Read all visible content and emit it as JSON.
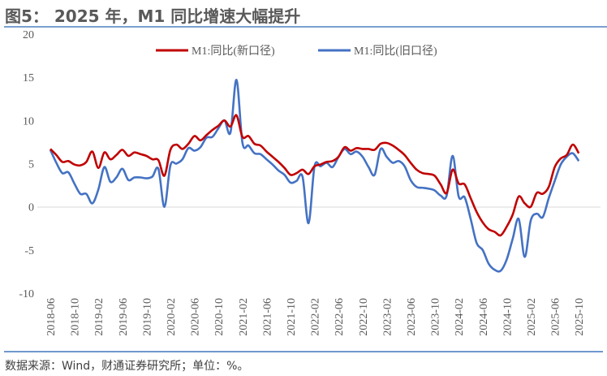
{
  "title": "图5： 2025 年，M1 同比增速大幅提升",
  "footer": "数据来源：Wind，财通证券研究所；单位：%。",
  "chart_data": {
    "type": "line",
    "title": "",
    "xlabel": "",
    "ylabel": "",
    "ylim": [
      -10,
      20
    ],
    "yticks": [
      "20",
      "15",
      "10",
      "5",
      "0",
      "-5",
      "-10"
    ],
    "grid": "zero line only",
    "legend": "top",
    "x_start": "2018-06",
    "x_end": "2025-10",
    "xtick_labels": [
      "2018-06",
      "2018-10",
      "2019-02",
      "2019-06",
      "2019-10",
      "2020-02",
      "2020-06",
      "2020-10",
      "2021-02",
      "2021-06",
      "2021-10",
      "2022-02",
      "2022-06",
      "2022-10",
      "2023-02",
      "2023-06",
      "2023-10",
      "2024-02",
      "2024-06",
      "2024-10",
      "2025-02",
      "2025-06",
      "2025-10"
    ],
    "series": [
      {
        "name": "M1:同比(新口径)",
        "color": "#c00000",
        "values": [
          6.7,
          6.0,
          5.2,
          5.3,
          4.9,
          4.8,
          5.2,
          6.4,
          4.5,
          6.3,
          5.5,
          6.0,
          6.6,
          5.9,
          6.3,
          6.1,
          5.9,
          5.5,
          5.4,
          3.6,
          6.6,
          7.2,
          6.7,
          7.3,
          8.2,
          7.7,
          8.3,
          8.9,
          9.4,
          10.0,
          9.3,
          10.6,
          8.1,
          8.2,
          7.3,
          7.1,
          6.4,
          5.8,
          5.2,
          4.5,
          3.7,
          3.9,
          4.3,
          3.8,
          4.7,
          4.9,
          5.2,
          5.3,
          5.8,
          6.9,
          6.5,
          6.8,
          6.7,
          6.7,
          6.6,
          7.3,
          7.4,
          7.1,
          6.6,
          6.0,
          5.1,
          4.3,
          3.9,
          3.8,
          3.6,
          2.6,
          1.6,
          4.3,
          2.7,
          2.6,
          1.0,
          -0.6,
          -1.8,
          -2.6,
          -2.9,
          -3.3,
          -2.3,
          -0.9,
          1.2,
          0.4,
          0.0,
          1.6,
          1.5,
          2.3,
          4.6,
          5.6,
          6.0,
          7.2,
          6.2
        ]
      },
      {
        "name": "M1:同比(旧口径)",
        "color": "#4472c4",
        "values": [
          6.6,
          5.1,
          3.9,
          4.0,
          2.7,
          1.5,
          1.5,
          0.4,
          2.0,
          4.6,
          2.9,
          3.4,
          4.4,
          3.1,
          3.4,
          3.4,
          3.3,
          3.5,
          4.4,
          0.0,
          4.8,
          5.0,
          5.5,
          6.8,
          6.5,
          6.9,
          8.0,
          8.1,
          9.1,
          10.0,
          8.6,
          14.7,
          7.4,
          7.1,
          6.2,
          6.1,
          5.5,
          4.9,
          4.2,
          3.7,
          2.8,
          3.0,
          3.5,
          -1.9,
          4.7,
          4.7,
          5.1,
          4.6,
          5.8,
          6.7,
          6.1,
          6.4,
          5.8,
          4.6,
          3.7,
          6.7,
          5.8,
          5.1,
          5.3,
          4.7,
          3.1,
          2.3,
          2.2,
          2.1,
          1.9,
          1.3,
          1.3,
          5.9,
          1.2,
          1.1,
          -1.4,
          -4.2,
          -5.0,
          -6.6,
          -7.3,
          -7.4,
          -6.1,
          -3.7,
          -1.4,
          -5.8,
          -1.6,
          -0.8,
          -1.2,
          1.0,
          3.0,
          4.9,
          5.8,
          6.2,
          5.3
        ]
      }
    ]
  }
}
